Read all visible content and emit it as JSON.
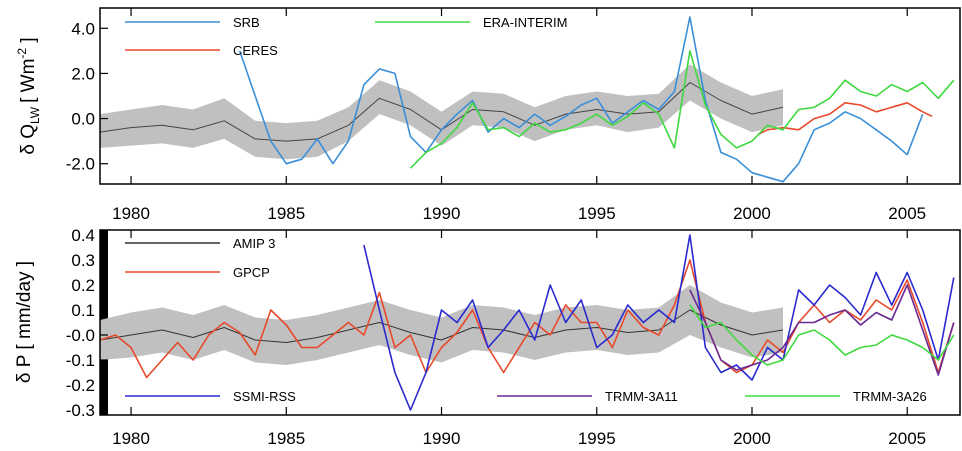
{
  "colors": {
    "SRB": "#3a8fd8",
    "CERES": "#e8492b",
    "ERA-INTERIM": "#40d840",
    "AMIP 3": "#333333",
    "GPCP": "#e8492b",
    "SSMI-RSS": "#2a2ad0",
    "TRMM-3A11": "#6a2a90",
    "TRMM-3A26": "#40d840",
    "band": "#c0c0c0"
  },
  "chart_data": [
    {
      "type": "line",
      "title": "",
      "xlabel": "",
      "ylabel": "δ Q",
      "ylabel_sub": "LW",
      "ylabel_unit": "[ Wm",
      "ylabel_sup": "-2",
      "ylabel_close": " ]",
      "xlim": [
        1979,
        2006.7
      ],
      "ylim": [
        -2.9,
        4.9
      ],
      "xticks": [
        "1980",
        "1985",
        "1990",
        "1995",
        "2000",
        "2005"
      ],
      "yticks": [
        "-2.0",
        "0.0",
        "2.0",
        "4.0"
      ],
      "grid": false,
      "legend": [
        "SRB",
        "CERES",
        "ERA-INTERIM"
      ],
      "series": [
        {
          "name": "",
          "key": "mean",
          "x": [
            1979,
            1980,
            1981,
            1982,
            1983,
            1984,
            1985,
            1986,
            1987,
            1988,
            1989,
            1990,
            1991,
            1992,
            1993,
            1994,
            1995,
            1996,
            1997,
            1998,
            1999,
            2000,
            2001
          ],
          "values": [
            -0.6,
            -0.4,
            -0.3,
            -0.5,
            -0.1,
            -0.9,
            -1.0,
            -0.9,
            -0.3,
            0.9,
            0.4,
            -0.5,
            0.4,
            0.3,
            -0.3,
            0.2,
            0.4,
            0.2,
            0.3,
            1.6,
            0.8,
            0.2,
            0.5
          ]
        },
        {
          "name": "",
          "key": "band_lo",
          "x": [
            1979,
            1980,
            1981,
            1982,
            1983,
            1984,
            1985,
            1986,
            1987,
            1988,
            1989,
            1990,
            1991,
            1992,
            1993,
            1994,
            1995,
            1996,
            1997,
            1998,
            1999,
            2000,
            2001
          ],
          "values": [
            -1.3,
            -1.2,
            -1.1,
            -1.3,
            -0.9,
            -1.7,
            -1.8,
            -1.7,
            -1.0,
            0.2,
            -0.3,
            -1.2,
            -0.3,
            -0.4,
            -1.0,
            -0.5,
            -0.3,
            -0.6,
            -0.4,
            0.8,
            0.0,
            -0.6,
            -0.3
          ]
        },
        {
          "name": "",
          "key": "band_hi",
          "x": [
            1979,
            1980,
            1981,
            1982,
            1983,
            1984,
            1985,
            1986,
            1987,
            1988,
            1989,
            1990,
            1991,
            1992,
            1993,
            1994,
            1995,
            1996,
            1997,
            1998,
            1999,
            2000,
            2001
          ],
          "values": [
            0.2,
            0.4,
            0.6,
            0.4,
            0.9,
            -0.1,
            -0.2,
            -0.1,
            0.5,
            1.7,
            1.2,
            0.3,
            1.2,
            1.1,
            0.5,
            1.0,
            1.2,
            1.0,
            1.1,
            2.4,
            1.6,
            1.0,
            1.3
          ]
        },
        {
          "name": "SRB",
          "key": "SRB",
          "x": [
            1983.5,
            1984,
            1984.5,
            1985,
            1985.5,
            1986,
            1986.5,
            1987,
            1987.5,
            1988,
            1988.5,
            1989,
            1989.5,
            1990,
            1990.5,
            1991,
            1991.5,
            1992,
            1992.5,
            1993,
            1993.5,
            1994,
            1994.5,
            1995,
            1995.5,
            1996,
            1996.5,
            1997,
            1997.5,
            1998,
            1998.5,
            1999,
            1999.5,
            2000,
            2000.5,
            2001,
            2001.5,
            2002,
            2002.5,
            2003,
            2003.5,
            2004,
            2004.5,
            2005,
            2005.5
          ],
          "values": [
            3.0,
            1.0,
            -1.0,
            -2.0,
            -1.8,
            -0.9,
            -2.0,
            -1.0,
            1.5,
            2.2,
            2.0,
            -0.8,
            -1.5,
            -0.5,
            0.2,
            0.8,
            -0.6,
            0.0,
            -0.4,
            0.2,
            -0.3,
            0.1,
            0.6,
            0.9,
            -0.2,
            0.3,
            0.8,
            0.4,
            1.2,
            4.5,
            0.8,
            -1.5,
            -1.8,
            -2.4,
            -2.6,
            -2.8,
            -2.0,
            -0.5,
            -0.2,
            0.3,
            0.0,
            -0.5,
            -1.0,
            -1.6,
            0.2
          ]
        },
        {
          "name": "CERES",
          "key": "CERES",
          "x": [
            2000.2,
            2000.5,
            2001,
            2001.5,
            2002,
            2002.5,
            2003,
            2003.5,
            2004,
            2004.5,
            2005,
            2005.5,
            2005.8
          ],
          "values": [
            -0.7,
            -0.5,
            -0.4,
            -0.5,
            0.0,
            0.2,
            0.7,
            0.6,
            0.3,
            0.5,
            0.7,
            0.3,
            0.1
          ]
        },
        {
          "name": "ERA-INTERIM",
          "key": "ERA",
          "x": [
            1989,
            1989.5,
            1990,
            1990.5,
            1991,
            1991.5,
            1992,
            1992.5,
            1993,
            1993.5,
            1994,
            1994.5,
            1995,
            1995.5,
            1996,
            1996.5,
            1997,
            1997.5,
            1998,
            1998.5,
            1999,
            1999.5,
            2000,
            2000.5,
            2001,
            2001.5,
            2002,
            2002.5,
            2003,
            2003.5,
            2004,
            2004.5,
            2005,
            2005.5,
            2006,
            2006.5
          ],
          "values": [
            -2.2,
            -1.5,
            -1.1,
            -0.4,
            0.7,
            -0.5,
            -0.4,
            -0.8,
            -0.2,
            -0.6,
            -0.5,
            -0.2,
            0.2,
            -0.3,
            0.1,
            0.7,
            0.2,
            -1.3,
            3.0,
            0.6,
            -0.7,
            -1.3,
            -1.0,
            -0.3,
            -0.5,
            0.4,
            0.5,
            0.9,
            1.7,
            1.2,
            1.0,
            1.5,
            1.2,
            1.6,
            0.9,
            1.7
          ]
        }
      ]
    },
    {
      "type": "line",
      "title": "",
      "xlabel": "",
      "ylabel": "δ P [ mm/day ]",
      "xlim": [
        1979,
        2006.7
      ],
      "ylim": [
        -0.32,
        0.42
      ],
      "xticks": [
        "1980",
        "1985",
        "1990",
        "1995",
        "2000",
        "2005"
      ],
      "yticks": [
        "-0.3",
        "-0.2",
        "-0.1",
        "-0.0",
        "0.1",
        "0.2",
        "0.3",
        "0.4"
      ],
      "grid": false,
      "legend": [
        "AMIP 3",
        "GPCP",
        "SSMI-RSS",
        "TRMM-3A11",
        "TRMM-3A26"
      ],
      "series": [
        {
          "name": "AMIP 3",
          "key": "AMIP",
          "x": [
            1979,
            1980,
            1981,
            1982,
            1983,
            1984,
            1985,
            1986,
            1987,
            1988,
            1989,
            1990,
            1991,
            1992,
            1993,
            1994,
            1995,
            1996,
            1997,
            1998,
            1999,
            2000,
            2001
          ],
          "values": [
            -0.02,
            0.0,
            0.02,
            -0.01,
            0.03,
            -0.02,
            -0.03,
            -0.01,
            0.02,
            0.05,
            0.01,
            -0.02,
            0.03,
            0.02,
            -0.01,
            0.02,
            0.03,
            0.01,
            0.02,
            0.1,
            0.04,
            0.0,
            0.02
          ]
        },
        {
          "name": "",
          "key": "band_lo",
          "x": [
            1979,
            1980,
            1981,
            1982,
            1983,
            1984,
            1985,
            1986,
            1987,
            1988,
            1989,
            1990,
            1991,
            1992,
            1993,
            1994,
            1995,
            1996,
            1997,
            1998,
            1999,
            2000,
            2001
          ],
          "values": [
            -0.1,
            -0.09,
            -0.07,
            -0.1,
            -0.06,
            -0.11,
            -0.12,
            -0.1,
            -0.07,
            -0.04,
            -0.08,
            -0.11,
            -0.06,
            -0.07,
            -0.1,
            -0.07,
            -0.06,
            -0.08,
            -0.07,
            0.0,
            -0.05,
            -0.09,
            -0.07
          ]
        },
        {
          "name": "",
          "key": "band_hi",
          "x": [
            1979,
            1980,
            1981,
            1982,
            1983,
            1984,
            1985,
            1986,
            1987,
            1988,
            1989,
            1990,
            1991,
            1992,
            1993,
            1994,
            1995,
            1996,
            1997,
            1998,
            1999,
            2000,
            2001
          ],
          "values": [
            0.06,
            0.09,
            0.11,
            0.08,
            0.12,
            0.07,
            0.06,
            0.08,
            0.11,
            0.14,
            0.1,
            0.07,
            0.12,
            0.11,
            0.08,
            0.11,
            0.12,
            0.1,
            0.11,
            0.2,
            0.13,
            0.09,
            0.11
          ]
        },
        {
          "name": "GPCP",
          "key": "GPCP",
          "x": [
            1979,
            1979.5,
            1980,
            1980.5,
            1981,
            1981.5,
            1982,
            1982.5,
            1983,
            1983.5,
            1984,
            1984.5,
            1985,
            1985.5,
            1986,
            1986.5,
            1987,
            1987.5,
            1988,
            1988.5,
            1989,
            1989.5,
            1990,
            1990.5,
            1991,
            1991.5,
            1992,
            1992.5,
            1993,
            1993.5,
            1994,
            1994.5,
            1995,
            1995.5,
            1996,
            1996.5,
            1997,
            1997.5,
            1998,
            1998.5,
            1999,
            1999.5,
            2000,
            2000.5,
            2001,
            2001.5,
            2002,
            2002.5,
            2003,
            2003.5,
            2004,
            2004.5,
            2005,
            2005.5,
            2006,
            2006.5
          ],
          "values": [
            -0.02,
            0.0,
            -0.05,
            -0.17,
            -0.1,
            -0.03,
            -0.1,
            0.0,
            0.05,
            0.01,
            -0.08,
            0.1,
            0.04,
            -0.05,
            -0.05,
            0.0,
            0.05,
            0.0,
            0.17,
            -0.05,
            0.0,
            -0.15,
            -0.05,
            0.01,
            0.1,
            -0.05,
            -0.15,
            -0.05,
            0.05,
            0.0,
            0.12,
            0.05,
            0.05,
            -0.05,
            0.1,
            0.03,
            0.0,
            0.12,
            0.3,
            0.05,
            -0.1,
            -0.15,
            -0.12,
            -0.02,
            -0.07,
            0.05,
            0.12,
            0.05,
            0.1,
            0.06,
            0.14,
            0.1,
            0.22,
            0.05,
            -0.15,
            0.05
          ]
        },
        {
          "name": "SSMI-RSS",
          "key": "SSMI",
          "x": [
            1987.5,
            1988,
            1988.5,
            1989,
            1989.5,
            1990,
            1990.5,
            1991,
            1991.5,
            1992,
            1992.5,
            1993,
            1993.5,
            1994,
            1994.5,
            1995,
            1995.5,
            1996,
            1996.5,
            1997,
            1997.5,
            1998,
            1998.5,
            1999,
            1999.5,
            2000,
            2000.5,
            2001,
            2001.5,
            2002,
            2002.5,
            2003,
            2003.5,
            2004,
            2004.5,
            2005,
            2005.5,
            2006,
            2006.5
          ],
          "values": [
            0.36,
            0.1,
            -0.15,
            -0.3,
            -0.15,
            0.1,
            0.05,
            0.14,
            -0.05,
            0.02,
            0.1,
            -0.02,
            0.2,
            0.05,
            0.14,
            -0.05,
            0.0,
            0.12,
            0.05,
            0.1,
            0.05,
            0.4,
            -0.05,
            -0.15,
            -0.12,
            -0.18,
            -0.05,
            -0.1,
            0.18,
            0.12,
            0.2,
            0.15,
            0.08,
            0.25,
            0.12,
            0.25,
            0.1,
            -0.1,
            0.23
          ]
        },
        {
          "name": "TRMM-3A11",
          "key": "TRMM11",
          "x": [
            1998,
            1998.5,
            1999,
            1999.5,
            2000,
            2000.5,
            2001,
            2001.5,
            2002,
            2002.5,
            2003,
            2003.5,
            2004,
            2004.5,
            2005,
            2005.5,
            2006,
            2006.5
          ],
          "values": [
            0.18,
            0.05,
            -0.1,
            -0.14,
            -0.12,
            -0.1,
            -0.05,
            0.05,
            0.05,
            0.08,
            0.1,
            0.04,
            0.09,
            0.06,
            0.2,
            0.02,
            -0.16,
            0.05
          ]
        },
        {
          "name": "TRMM-3A26",
          "key": "TRMM26",
          "x": [
            1998,
            1998.5,
            1999,
            1999.5,
            2000,
            2000.5,
            2001,
            2001.5,
            2002,
            2002.5,
            2003,
            2003.5,
            2004,
            2004.5,
            2005,
            2005.5,
            2006,
            2006.5
          ],
          "values": [
            0.12,
            0.03,
            0.05,
            -0.02,
            -0.08,
            -0.12,
            -0.1,
            0.0,
            0.02,
            -0.02,
            -0.08,
            -0.05,
            -0.04,
            0.0,
            -0.02,
            -0.05,
            -0.1,
            0.0
          ]
        }
      ]
    }
  ]
}
